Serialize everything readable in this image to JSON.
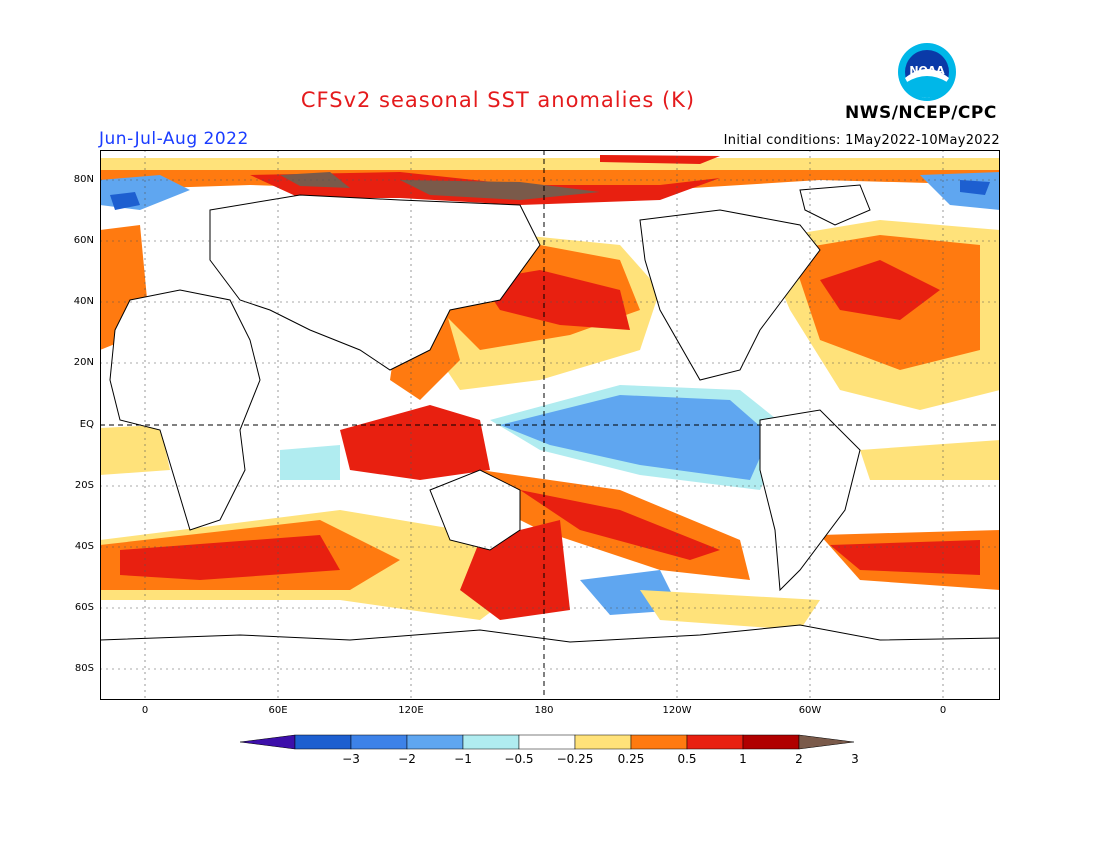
{
  "header": {
    "title": "CFSv2 seasonal SST anomalies (K)",
    "season": "Jun-Jul-Aug 2022",
    "initial_conditions": "Initial conditions: 1May2022-10May2022",
    "agency": "NWS/NCEP/CPC",
    "logo_text": "NOAA"
  },
  "axes": {
    "lat_labels": [
      "80N",
      "60N",
      "40N",
      "20N",
      "EQ",
      "20S",
      "40S",
      "60S",
      "80S"
    ],
    "lon_labels": [
      "0",
      "60E",
      "120E",
      "180",
      "120W",
      "60W",
      "0"
    ]
  },
  "colorbar": {
    "ticks": [
      "-3",
      "-2",
      "-1",
      "-0.5",
      "-0.25",
      "0.25",
      "0.5",
      "1",
      "2",
      "3"
    ],
    "colors": [
      "#3d0faa",
      "#1d5fd0",
      "#3d82e8",
      "#5fa6f0",
      "#b0ecf0",
      "#ffffff",
      "#ffe27a",
      "#ff7a10",
      "#e82010",
      "#b00000",
      "#7a5a4a"
    ]
  },
  "colors": {
    "title": "#e41a1c",
    "season": "#1a3cff",
    "ocean_anomaly_pos_weak": "#ffe27a",
    "ocean_anomaly_pos": "#ff7a10",
    "ocean_anomaly_pos_strong": "#e82010",
    "ocean_anomaly_neg": "#5fa6f0"
  }
}
